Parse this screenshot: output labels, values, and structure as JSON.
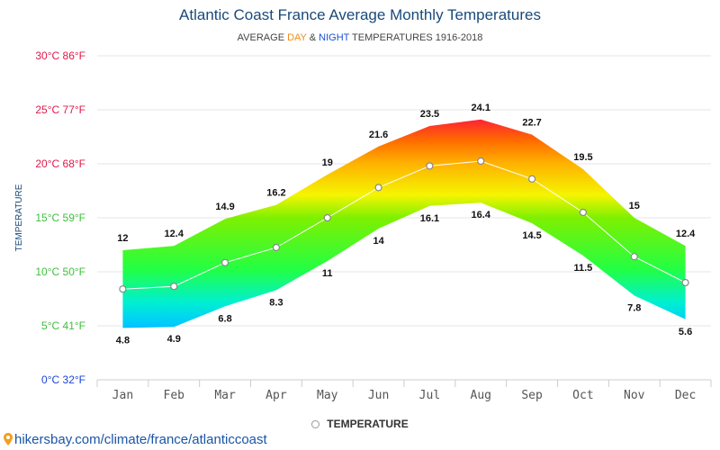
{
  "title": "Atlantic Coast France Average Monthly Temperatures",
  "subtitle": {
    "prefix": "AVERAGE ",
    "day": "DAY",
    "middle": " & ",
    "night": "NIGHT",
    "suffix": " TEMPERATURES 1916-2018"
  },
  "legend": {
    "label": "TEMPERATURE"
  },
  "footer": {
    "url": "hikersbay.com/climate/france/atlanticcoast",
    "icon": "location-pin-icon"
  },
  "colors": {
    "title": "#1a4a7a",
    "day_accent": "#f28a1c",
    "night_accent": "#1a4fd6",
    "footer_link": "#1a55a6"
  },
  "chart_data": {
    "type": "area",
    "ylabel": "TEMPERATURE",
    "ylim": [
      0,
      30
    ],
    "yticks": [
      {
        "value": 0,
        "label": "0°C 32°F",
        "color": "#1a44d8"
      },
      {
        "value": 5,
        "label": "5°C 41°F",
        "color": "#3fbf3f"
      },
      {
        "value": 10,
        "label": "10°C 50°F",
        "color": "#3fbf3f"
      },
      {
        "value": 15,
        "label": "15°C 59°F",
        "color": "#3fbf3f"
      },
      {
        "value": 20,
        "label": "20°C 68°F",
        "color": "#e0184a"
      },
      {
        "value": 25,
        "label": "25°C 77°F",
        "color": "#e0184a"
      },
      {
        "value": 30,
        "label": "30°C 86°F",
        "color": "#e0184a"
      }
    ],
    "categories": [
      "Jan",
      "Feb",
      "Mar",
      "Apr",
      "May",
      "Jun",
      "Jul",
      "Aug",
      "Sep",
      "Oct",
      "Nov",
      "Dec"
    ],
    "series": [
      {
        "values": [
          12,
          12.4,
          14.9,
          16.2,
          19,
          21.6,
          23.5,
          24.1,
          22.7,
          19.5,
          15,
          12.4
        ]
      },
      {
        "values": [
          4.8,
          4.9,
          6.8,
          8.3,
          11,
          14,
          16.1,
          16.4,
          14.5,
          11.5,
          7.8,
          5.6
        ]
      },
      {
        "name": "TEMPERATURE",
        "values": [
          8.4,
          8.65,
          10.85,
          12.25,
          15,
          17.8,
          19.8,
          20.25,
          18.6,
          15.5,
          11.4,
          9
        ]
      }
    ],
    "grid": true,
    "legend_position": "bottom"
  }
}
